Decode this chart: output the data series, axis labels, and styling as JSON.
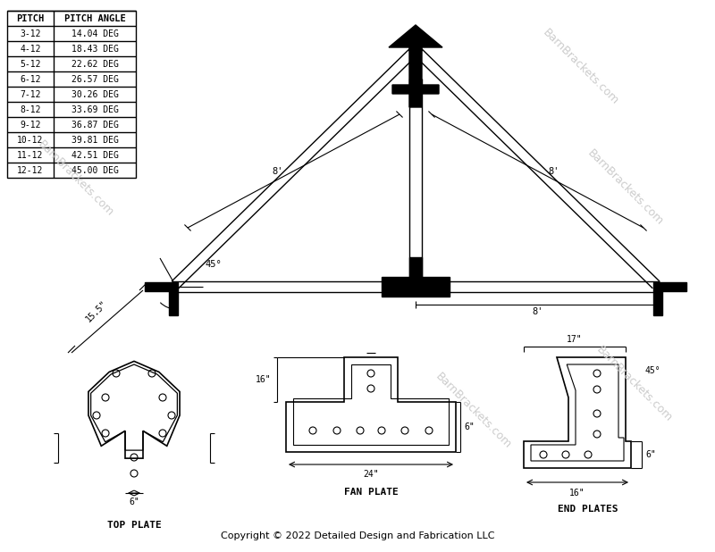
{
  "bg_color": "#FFFFFF",
  "line_color": "#000000",
  "watermark_color": "#CCCCCC",
  "table_pitches": [
    "3-12",
    "4-12",
    "5-12",
    "6-12",
    "7-12",
    "8-12",
    "9-12",
    "10-12",
    "11-12",
    "12-12"
  ],
  "table_angles": [
    "14.04 DEG",
    "18.43 DEG",
    "22.62 DEG",
    "26.57 DEG",
    "30.26 DEG",
    "33.69 DEG",
    "36.87 DEG",
    "39.81 DEG",
    "42.51 DEG",
    "45.00 DEG"
  ],
  "copyright": "Copyright © 2022 Detailed Design and Fabrication LLC",
  "watermark_text": "BarnBrackets.com",
  "label_8ft": "8'",
  "label_45deg": "45°",
  "label_top_plate": "TOP PLATE",
  "label_fan_plate": "FAN PLATE",
  "label_end_plates": "END PLATES",
  "dim_6in": "6\"",
  "dim_16in": "16\"",
  "dim_17in": "17\"",
  "dim_24in": "24\"",
  "dim_15_5in": "15.5\""
}
